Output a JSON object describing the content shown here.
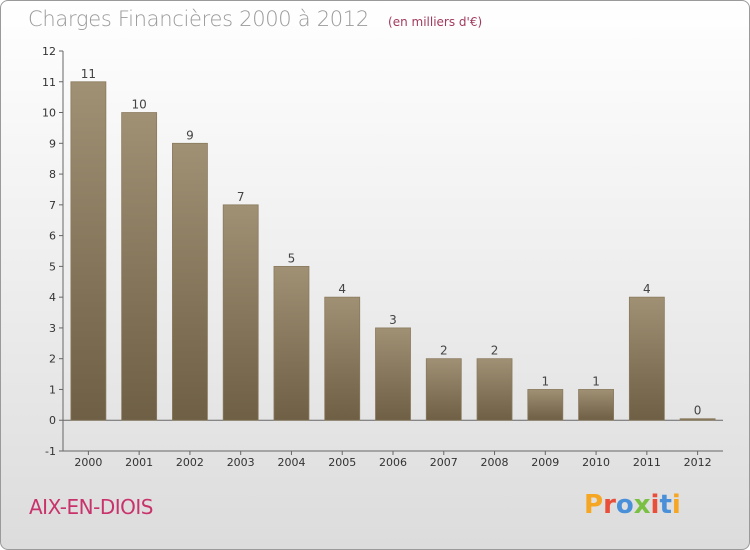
{
  "header": {
    "title": "Charges Financières 2000 à 2012",
    "subtitle": "(en milliers d'€)"
  },
  "footer": {
    "commune": "AIX-EN-DIOIS",
    "logo": "Proxiti"
  },
  "colors": {
    "bar_top": "#a09074",
    "bar_bottom": "#6e5f45",
    "title": "#9a9a9a",
    "commune": "#c8336b",
    "logo": [
      "#f5a623",
      "#e94e3a",
      "#4a90d9",
      "#7ac043",
      "#e94e3a",
      "#4a90d9",
      "#f5a623"
    ]
  },
  "chart_data": {
    "type": "bar",
    "categories": [
      "2000",
      "2001",
      "2002",
      "2003",
      "2004",
      "2005",
      "2006",
      "2007",
      "2008",
      "2009",
      "2010",
      "2011",
      "2012"
    ],
    "values": [
      11,
      10,
      9,
      7,
      5,
      4,
      3,
      2,
      2,
      1,
      1,
      4,
      0
    ],
    "title": "Charges Financières 2000 à 2012",
    "subtitle": "(en milliers d'€)",
    "ylim": [
      -1,
      12
    ],
    "yticks": [
      -1,
      0,
      1,
      2,
      3,
      4,
      5,
      6,
      7,
      8,
      9,
      10,
      11,
      12
    ],
    "grid": false,
    "legend": "none"
  }
}
